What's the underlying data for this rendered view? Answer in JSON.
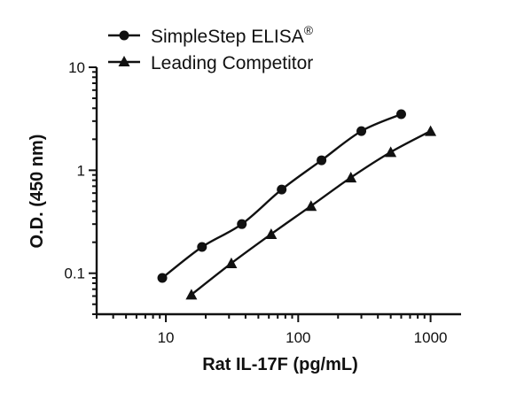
{
  "chart_data": {
    "type": "scatter",
    "xlabel": "Rat IL-17F (pg/mL)",
    "ylabel": "O.D. (450 nm)",
    "x_scale": "log",
    "y_scale": "log",
    "xlim": [
      3,
      1700
    ],
    "ylim": [
      0.04,
      10
    ],
    "x_ticks": [
      10,
      100,
      1000
    ],
    "x_tick_labels": [
      "10",
      "100",
      "1000"
    ],
    "y_ticks": [
      0.1,
      1,
      10
    ],
    "y_tick_labels": [
      "0.1",
      "1",
      "10"
    ],
    "grid": false,
    "legend_position": "top-left",
    "series": [
      {
        "name": "SimpleStep ELISA®",
        "name_text": "SimpleStep ELISA",
        "name_sup": "®",
        "marker": "circle",
        "color": "#111111",
        "x": [
          9.4,
          18.75,
          37.5,
          75,
          150,
          300,
          600
        ],
        "y": [
          0.09,
          0.18,
          0.3,
          0.65,
          1.25,
          2.4,
          3.5
        ]
      },
      {
        "name": "Leading Competitor",
        "marker": "triangle",
        "color": "#111111",
        "x": [
          15.6,
          31.25,
          62.5,
          125,
          250,
          500,
          1000
        ],
        "y": [
          0.062,
          0.125,
          0.24,
          0.45,
          0.85,
          1.5,
          2.4
        ]
      }
    ]
  }
}
